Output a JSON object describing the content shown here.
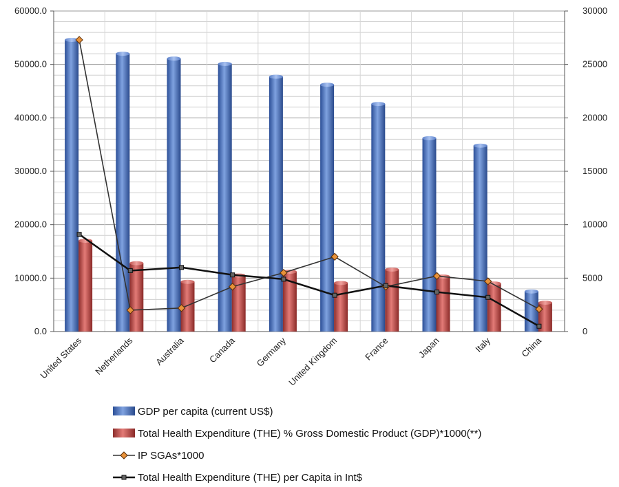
{
  "chart_data": {
    "type": "bar",
    "categories": [
      "United States",
      "Netherlands",
      "Australia",
      "Canada",
      "Germany",
      "United Kingdom",
      "France",
      "Japan",
      "Italy",
      "China"
    ],
    "y_left": {
      "range": [
        0,
        60000
      ],
      "ticks": [
        "0.0",
        "10000.0",
        "20000.0",
        "30000.0",
        "40000.0",
        "50000.0",
        "60000.0"
      ]
    },
    "y_right": {
      "range": [
        0,
        30000
      ],
      "ticks": [
        "0",
        "5000",
        "10000",
        "15000",
        "20000",
        "25000",
        "30000"
      ]
    },
    "grid": true,
    "legend_position": "bottom",
    "series": [
      {
        "name": "GDP per capita (current US$)",
        "kind": "bar",
        "axis": "left",
        "color": "#4a72c4",
        "values": [
          54600,
          52000,
          51100,
          50100,
          47700,
          46200,
          42600,
          36200,
          34800,
          7500
        ]
      },
      {
        "name": "Total Health Expenditure (THE) % Gross Domestic Product (GDP)*1000(**)",
        "kind": "bar",
        "axis": "left",
        "color": "#c0504d",
        "values": [
          17000,
          12800,
          9300,
          10500,
          11200,
          9100,
          11600,
          10300,
          9000,
          5400
        ]
      },
      {
        "name": "IP SGAs*1000",
        "kind": "line",
        "axis": "right",
        "color": "#333333",
        "marker": "diamond",
        "marker_color": "#e8923a",
        "values": [
          27300,
          2000,
          2200,
          4200,
          5500,
          7000,
          4200,
          5200,
          4700,
          2100
        ]
      },
      {
        "name": "Total Health Expenditure (THE) per Capita in Int$",
        "kind": "line",
        "axis": "right",
        "color": "#111111",
        "marker": "square",
        "marker_color": "#666666",
        "values": [
          9100,
          5700,
          6000,
          5300,
          4900,
          3400,
          4300,
          3700,
          3200,
          500
        ]
      }
    ]
  }
}
